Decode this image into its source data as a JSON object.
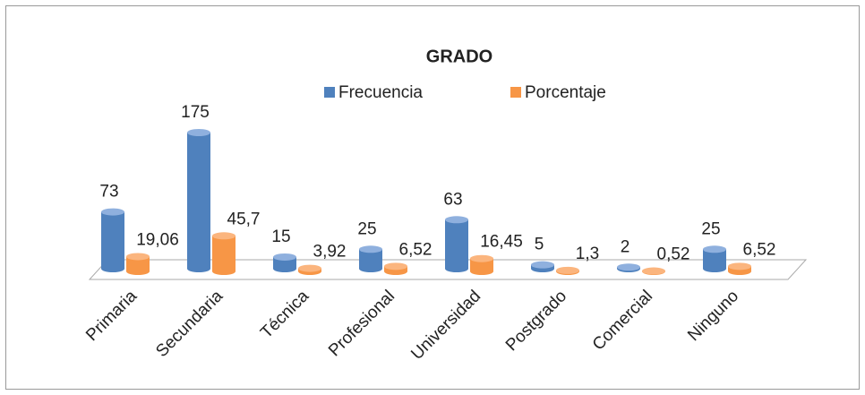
{
  "chart_data": {
    "type": "bar3d",
    "title": "GRADO",
    "categories": [
      "Primaria",
      "Secundaria",
      "Técnica",
      "Profesional",
      "Universidad",
      "Postgrado",
      "Comercial",
      "Ninguno"
    ],
    "series": [
      {
        "name": "Frecuencia",
        "color": "#4f81bd",
        "values": [
          73,
          175,
          15,
          25,
          63,
          5,
          2,
          25
        ]
      },
      {
        "name": "Porcentaje",
        "color": "#f79646",
        "values": [
          19.06,
          45.7,
          3.92,
          6.52,
          16.45,
          1.3,
          0.52,
          6.52
        ],
        "value_labels": [
          "19,06",
          "45,7",
          "3,92",
          "6,52",
          "16,45",
          "1,3",
          "0,52",
          "6,52"
        ]
      }
    ],
    "legend": "top"
  }
}
